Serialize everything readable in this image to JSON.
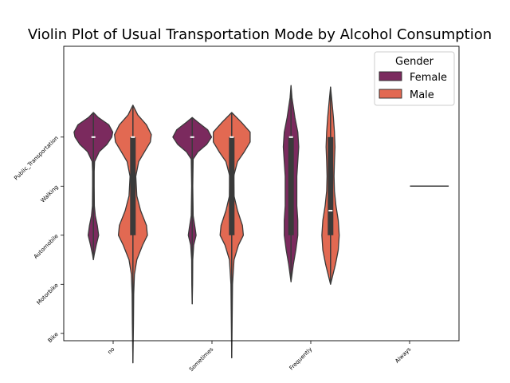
{
  "chart_data": {
    "type": "violin",
    "title": "Violin Plot of Usual Transportation Mode by Alcohol Consumption",
    "xlabel": "",
    "ylabel": "",
    "categories": [
      "no",
      "Sometimes",
      "Frequently",
      "Always"
    ],
    "y_categories": [
      "Public_Transportation",
      "Walking",
      "Automobile",
      "Motorbike",
      "Bike"
    ],
    "ylim": [
      -0.85,
      5.15
    ],
    "legend": {
      "title": "Gender",
      "position": "top-right"
    },
    "series": [
      {
        "name": "Female",
        "color": "#7b2a5e",
        "violins": [
          {
            "category": "no",
            "range": [
              0.5,
              3.5
            ],
            "median": 1,
            "iqr": [
              1,
              1
            ],
            "density": [
              [
                0.5,
                0
              ],
              [
                0.6,
                0.25
              ],
              [
                0.75,
                0.8
              ],
              [
                0.9,
                1.0
              ],
              [
                1.0,
                0.95
              ],
              [
                1.15,
                0.7
              ],
              [
                1.3,
                0.3
              ],
              [
                1.5,
                0.06
              ],
              [
                1.7,
                0.04
              ],
              [
                2.0,
                0.04
              ],
              [
                2.4,
                0.05
              ],
              [
                2.6,
                0.1
              ],
              [
                2.8,
                0.2
              ],
              [
                3.0,
                0.27
              ],
              [
                3.2,
                0.15
              ],
              [
                3.4,
                0.04
              ],
              [
                3.5,
                0
              ]
            ]
          },
          {
            "category": "Sometimes",
            "range": [
              0.6,
              4.4
            ],
            "median": 1,
            "iqr": [
              1,
              1
            ],
            "density": [
              [
                0.6,
                0
              ],
              [
                0.7,
                0.3
              ],
              [
                0.85,
                0.8
              ],
              [
                1.0,
                1.0
              ],
              [
                1.15,
                0.75
              ],
              [
                1.3,
                0.3
              ],
              [
                1.45,
                0.05
              ],
              [
                2.0,
                0.03
              ],
              [
                2.6,
                0.05
              ],
              [
                2.85,
                0.15
              ],
              [
                3.0,
                0.2
              ],
              [
                3.2,
                0.08
              ],
              [
                3.5,
                0.03
              ],
              [
                4.0,
                0.02
              ],
              [
                4.4,
                0
              ]
            ]
          },
          {
            "category": "Frequently",
            "range": [
              -0.05,
              3.95
            ],
            "median": 1,
            "iqr": [
              1,
              3
            ],
            "density": [
              [
                -0.05,
                0
              ],
              [
                0.2,
                0.05
              ],
              [
                0.6,
                0.2
              ],
              [
                0.9,
                0.35
              ],
              [
                1.2,
                0.4
              ],
              [
                1.5,
                0.35
              ],
              [
                1.8,
                0.3
              ],
              [
                2.1,
                0.3
              ],
              [
                2.4,
                0.3
              ],
              [
                2.7,
                0.35
              ],
              [
                3.0,
                0.35
              ],
              [
                3.3,
                0.25
              ],
              [
                3.6,
                0.12
              ],
              [
                3.95,
                0
              ]
            ]
          }
        ]
      },
      {
        "name": "Male",
        "color": "#e26952",
        "violins": [
          {
            "category": "no",
            "range": [
              0.35,
              5.6
            ],
            "median": 1,
            "iqr": [
              1,
              3
            ],
            "density": [
              [
                0.35,
                0
              ],
              [
                0.55,
                0.25
              ],
              [
                0.75,
                0.7
              ],
              [
                0.95,
                0.95
              ],
              [
                1.1,
                0.9
              ],
              [
                1.3,
                0.6
              ],
              [
                1.5,
                0.3
              ],
              [
                1.8,
                0.15
              ],
              [
                2.2,
                0.2
              ],
              [
                2.5,
                0.4
              ],
              [
                2.8,
                0.7
              ],
              [
                3.0,
                0.75
              ],
              [
                3.2,
                0.5
              ],
              [
                3.5,
                0.2
              ],
              [
                3.8,
                0.08
              ],
              [
                4.2,
                0.04
              ],
              [
                4.8,
                0.03
              ],
              [
                5.6,
                0
              ]
            ]
          },
          {
            "category": "Sometimes",
            "range": [
              0.5,
              5.5
            ],
            "median": 1,
            "iqr": [
              1,
              3
            ],
            "density": [
              [
                0.5,
                0
              ],
              [
                0.7,
                0.5
              ],
              [
                0.9,
                0.95
              ],
              [
                1.1,
                0.95
              ],
              [
                1.3,
                0.65
              ],
              [
                1.5,
                0.3
              ],
              [
                1.8,
                0.1
              ],
              [
                2.2,
                0.12
              ],
              [
                2.5,
                0.3
              ],
              [
                2.8,
                0.55
              ],
              [
                3.0,
                0.6
              ],
              [
                3.2,
                0.35
              ],
              [
                3.5,
                0.12
              ],
              [
                4.0,
                0.04
              ],
              [
                4.5,
                0.03
              ],
              [
                5.5,
                0
              ]
            ]
          },
          {
            "category": "Frequently",
            "range": [
              -0.02,
              4.0
            ],
            "median": 2.5,
            "iqr": [
              1,
              3
            ],
            "density": [
              [
                -0.02,
                0
              ],
              [
                0.3,
                0.08
              ],
              [
                0.6,
                0.15
              ],
              [
                0.9,
                0.2
              ],
              [
                1.2,
                0.23
              ],
              [
                1.5,
                0.2
              ],
              [
                1.8,
                0.18
              ],
              [
                2.1,
                0.2
              ],
              [
                2.4,
                0.28
              ],
              [
                2.7,
                0.4
              ],
              [
                3.0,
                0.45
              ],
              [
                3.3,
                0.4
              ],
              [
                3.6,
                0.25
              ],
              [
                4.0,
                0
              ]
            ]
          },
          {
            "category": "Always",
            "range": [
              2,
              2
            ],
            "median": 2,
            "iqr": [
              2,
              2
            ],
            "density": []
          }
        ]
      }
    ]
  }
}
